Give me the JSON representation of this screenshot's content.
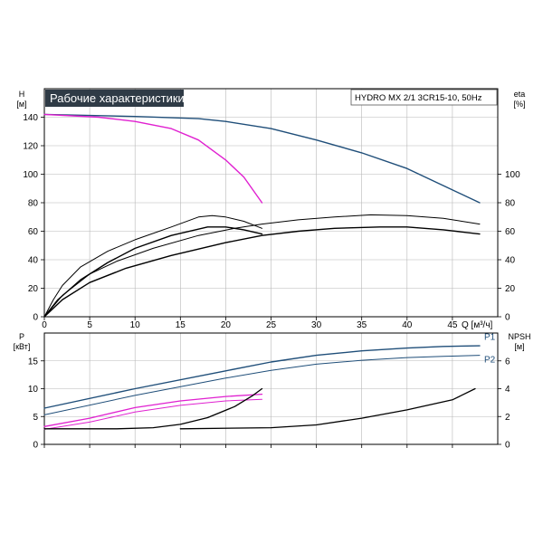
{
  "title": "Рабочие характеристики",
  "model": "HYDRO MX 2/1 3CR15-10, 50Hz",
  "colors": {
    "blue": "#1f4e79",
    "magenta": "#e020d0",
    "black": "#000000",
    "grid": "#b8b8b8"
  },
  "chart_data": [
    {
      "type": "line",
      "name": "performance",
      "xlabel": "Q [м³/ч]",
      "ylabel_left": [
        "H",
        "[м]"
      ],
      "ylabel_right": [
        "eta",
        "[%]"
      ],
      "xlim": [
        0,
        50
      ],
      "ylim": [
        0,
        160
      ],
      "xticks": [
        0,
        5,
        10,
        15,
        20,
        25,
        30,
        35,
        40,
        45
      ],
      "yticks_left": [
        0,
        20,
        40,
        60,
        80,
        100,
        120,
        140
      ],
      "yticks_right": [
        0,
        20,
        40,
        60,
        80,
        100
      ],
      "grid": true,
      "series": [
        {
          "color": "blue",
          "width": 1.4,
          "points": [
            [
              0,
              142
            ],
            [
              10,
              140.5
            ],
            [
              17,
              139
            ],
            [
              20,
              137
            ],
            [
              25,
              132
            ],
            [
              30,
              124
            ],
            [
              35,
              115
            ],
            [
              40,
              104
            ],
            [
              44,
              92
            ],
            [
              48,
              80
            ]
          ]
        },
        {
          "color": "magenta",
          "width": 1.4,
          "points": [
            [
              0,
              142
            ],
            [
              6,
              140
            ],
            [
              10,
              137
            ],
            [
              14,
              132
            ],
            [
              17,
              124
            ],
            [
              20,
              110
            ],
            [
              22,
              98
            ],
            [
              24,
              80
            ]
          ]
        },
        {
          "color": "black",
          "width": 1,
          "points": [
            [
              0,
              0
            ],
            [
              1,
              12
            ],
            [
              2,
              22
            ],
            [
              4,
              35
            ],
            [
              7,
              46
            ],
            [
              10,
              54
            ],
            [
              14,
              63
            ],
            [
              17,
              70
            ],
            [
              18.5,
              71
            ],
            [
              20,
              70
            ],
            [
              22,
              67
            ],
            [
              24,
              62
            ]
          ]
        },
        {
          "color": "black",
          "width": 1.4,
          "points": [
            [
              0,
              0
            ],
            [
              1.5,
              12
            ],
            [
              4,
              26
            ],
            [
              7,
              38
            ],
            [
              10,
              48
            ],
            [
              14,
              57
            ],
            [
              18,
              63
            ],
            [
              20,
              63
            ],
            [
              22,
              61
            ],
            [
              24,
              58
            ]
          ]
        },
        {
          "color": "black",
          "width": 1,
          "points": [
            [
              0,
              0
            ],
            [
              2,
              15
            ],
            [
              5,
              30
            ],
            [
              8,
              39
            ],
            [
              12,
              48
            ],
            [
              17,
              57
            ],
            [
              21,
              62
            ],
            [
              24,
              65
            ],
            [
              28,
              68
            ],
            [
              32,
              70
            ],
            [
              36,
              71.5
            ],
            [
              40,
              71
            ],
            [
              44,
              69
            ],
            [
              48,
              65
            ]
          ]
        },
        {
          "color": "black",
          "width": 1.4,
          "points": [
            [
              0,
              0
            ],
            [
              2,
              12
            ],
            [
              5,
              24
            ],
            [
              9,
              34
            ],
            [
              14,
              43
            ],
            [
              20,
              52
            ],
            [
              24,
              57
            ],
            [
              28,
              60
            ],
            [
              32,
              62
            ],
            [
              37,
              63
            ],
            [
              40,
              63
            ],
            [
              44,
              61
            ],
            [
              48,
              58
            ]
          ]
        }
      ]
    },
    {
      "type": "line",
      "name": "power-npsh",
      "xlim": [
        0,
        50
      ],
      "ylim": [
        0,
        20
      ],
      "ylabel_left": [
        "P",
        "[кВт]"
      ],
      "ylabel_right": [
        "NPSH",
        "[м]"
      ],
      "yticks_left": [
        0,
        5,
        10,
        15
      ],
      "yticks_right": [
        0,
        2,
        4,
        6
      ],
      "right_scale": 2.5,
      "grid": true,
      "labels": [
        {
          "text": "P1",
          "x": 48.5,
          "y": 18.8,
          "color": "blue"
        },
        {
          "text": "P2",
          "x": 48.5,
          "y": 14.7,
          "color": "blue"
        }
      ],
      "series": [
        {
          "color": "blue",
          "width": 1.4,
          "points": [
            [
              0,
              6.5
            ],
            [
              10,
              10
            ],
            [
              20,
              13.2
            ],
            [
              25,
              14.8
            ],
            [
              30,
              16
            ],
            [
              35,
              16.8
            ],
            [
              40,
              17.3
            ],
            [
              44,
              17.6
            ],
            [
              48,
              17.7
            ]
          ]
        },
        {
          "color": "blue",
          "width": 1,
          "points": [
            [
              0,
              5.3
            ],
            [
              10,
              8.8
            ],
            [
              20,
              11.9
            ],
            [
              25,
              13.3
            ],
            [
              30,
              14.4
            ],
            [
              35,
              15.1
            ],
            [
              40,
              15.6
            ],
            [
              44,
              15.8
            ],
            [
              48,
              16
            ]
          ]
        },
        {
          "color": "magenta",
          "width": 1.3,
          "points": [
            [
              0,
              3.2
            ],
            [
              5,
              4.7
            ],
            [
              10,
              6.6
            ],
            [
              15,
              7.8
            ],
            [
              20,
              8.6
            ],
            [
              24,
              9.0
            ]
          ]
        },
        {
          "color": "magenta",
          "width": 1,
          "points": [
            [
              0,
              2.7
            ],
            [
              5,
              4.0
            ],
            [
              10,
              5.8
            ],
            [
              15,
              7.0
            ],
            [
              20,
              7.8
            ],
            [
              24,
              8.1
            ]
          ]
        },
        {
          "color": "black",
          "width": 1.3,
          "points": [
            [
              0,
              2.8
            ],
            [
              8,
              2.8
            ],
            [
              12,
              3.0
            ],
            [
              15,
              3.6
            ],
            [
              18,
              4.8
            ],
            [
              21,
              6.8
            ],
            [
              23,
              8.8
            ],
            [
              24,
              10.0
            ]
          ]
        },
        {
          "color": "black",
          "width": 1.3,
          "points": [
            [
              15,
              2.8
            ],
            [
              25,
              3.0
            ],
            [
              30,
              3.5
            ],
            [
              35,
              4.7
            ],
            [
              40,
              6.2
            ],
            [
              45,
              8.0
            ],
            [
              47.5,
              10.0
            ]
          ]
        }
      ]
    }
  ]
}
